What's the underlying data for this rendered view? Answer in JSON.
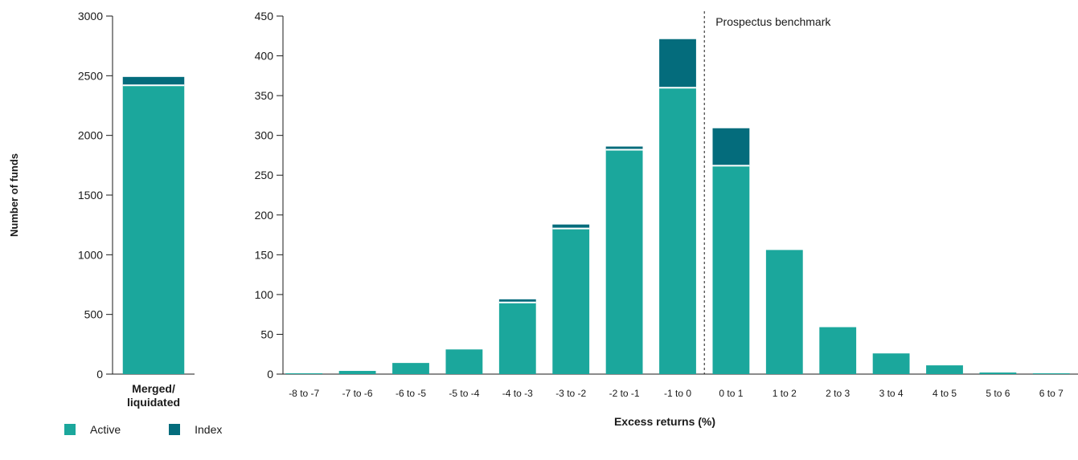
{
  "colors": {
    "active": "#1ba79c",
    "index": "#046c7c"
  },
  "legend": [
    {
      "key": "active",
      "label": "Active"
    },
    {
      "key": "index",
      "label": "Index"
    }
  ],
  "chart_data": [
    {
      "type": "bar",
      "stacked": true,
      "ylabel": "Number of funds",
      "ylim": [
        0,
        3000
      ],
      "yticks": [
        0,
        500,
        1000,
        1500,
        2000,
        2500,
        3000
      ],
      "categories": [
        "Merged/liquidated"
      ],
      "category_lines": [
        "Merged/",
        "liquidated"
      ],
      "series": [
        {
          "name": "Active",
          "values": [
            2420
          ]
        },
        {
          "name": "Index",
          "values": [
            70
          ]
        }
      ]
    },
    {
      "type": "bar",
      "stacked": true,
      "xlabel": "Excess returns (%)",
      "ylim": [
        0,
        450
      ],
      "yticks": [
        0,
        50,
        100,
        150,
        200,
        250,
        300,
        350,
        400,
        450
      ],
      "categories": [
        "-8 to -7",
        "-7 to -6",
        "-6 to -5",
        "-5 to -4",
        "-4 to -3",
        "-3 to -2",
        "-2 to -1",
        "-1 to 0",
        "0 to 1",
        "1 to 2",
        "2 to 3",
        "3 to 4",
        "4 to 5",
        "5 to 6",
        "6 to 7"
      ],
      "series": [
        {
          "name": "Active",
          "values": [
            1,
            4,
            14,
            31,
            90,
            183,
            282,
            360,
            262,
            156,
            59,
            26,
            11,
            2,
            1
          ]
        },
        {
          "name": "Index",
          "values": [
            0,
            0,
            0,
            0,
            4,
            5,
            4,
            61,
            47,
            0,
            0,
            0,
            0,
            0,
            0
          ]
        }
      ],
      "annotation": {
        "label": "Prospectus benchmark",
        "x_between": [
          "-1 to 0",
          "0 to 1"
        ]
      }
    }
  ]
}
